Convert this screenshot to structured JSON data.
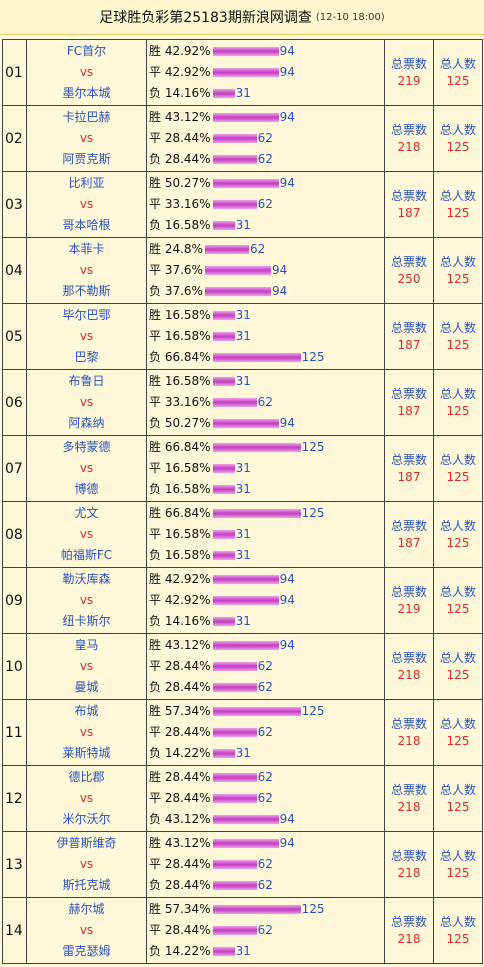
{
  "header": {
    "title": "足球胜负彩第25183期新浪网调查",
    "datetime": "(12-10 18:00)"
  },
  "labels": {
    "vs": "vs",
    "tickets": "总票数",
    "people": "总人数"
  },
  "colors": {
    "background": "#fff9d9",
    "team": "#2a52be",
    "vs": "#e02a2a",
    "bar": "#c23cc4"
  },
  "matches": [
    {
      "no": "01",
      "home": "FC首尔",
      "away": "墨尔本城",
      "tickets": "219",
      "people": "125",
      "bars": [
        {
          "label": "胜 42.92%",
          "count": 94
        },
        {
          "label": "平 42.92%",
          "count": 94
        },
        {
          "label": "负 14.16%",
          "count": 31
        }
      ]
    },
    {
      "no": "02",
      "home": "卡拉巴赫",
      "away": "阿贾克斯",
      "tickets": "218",
      "people": "125",
      "bars": [
        {
          "label": "胜 43.12%",
          "count": 94
        },
        {
          "label": "平 28.44%",
          "count": 62
        },
        {
          "label": "负 28.44%",
          "count": 62
        }
      ]
    },
    {
      "no": "03",
      "home": "比利亚",
      "away": "哥本哈根",
      "tickets": "187",
      "people": "125",
      "bars": [
        {
          "label": "胜 50.27%",
          "count": 94
        },
        {
          "label": "平 33.16%",
          "count": 62
        },
        {
          "label": "负 16.58%",
          "count": 31
        }
      ]
    },
    {
      "no": "04",
      "home": "本菲卡",
      "away": "那不勒斯",
      "tickets": "250",
      "people": "125",
      "bars": [
        {
          "label": "胜 24.8%",
          "count": 62
        },
        {
          "label": "平 37.6%",
          "count": 94
        },
        {
          "label": "负 37.6%",
          "count": 94
        }
      ]
    },
    {
      "no": "05",
      "home": "毕尔巴鄂",
      "away": "巴黎",
      "tickets": "187",
      "people": "125",
      "bars": [
        {
          "label": "胜 16.58%",
          "count": 31
        },
        {
          "label": "平 16.58%",
          "count": 31
        },
        {
          "label": "负 66.84%",
          "count": 125
        }
      ]
    },
    {
      "no": "06",
      "home": "布鲁日",
      "away": "阿森纳",
      "tickets": "187",
      "people": "125",
      "bars": [
        {
          "label": "胜 16.58%",
          "count": 31
        },
        {
          "label": "平 33.16%",
          "count": 62
        },
        {
          "label": "负 50.27%",
          "count": 94
        }
      ]
    },
    {
      "no": "07",
      "home": "多特蒙德",
      "away": "博德",
      "tickets": "187",
      "people": "125",
      "bars": [
        {
          "label": "胜 66.84%",
          "count": 125
        },
        {
          "label": "平 16.58%",
          "count": 31
        },
        {
          "label": "负 16.58%",
          "count": 31
        }
      ]
    },
    {
      "no": "08",
      "home": "尤文",
      "away": "帕福斯FC",
      "tickets": "187",
      "people": "125",
      "bars": [
        {
          "label": "胜 66.84%",
          "count": 125
        },
        {
          "label": "平 16.58%",
          "count": 31
        },
        {
          "label": "负 16.58%",
          "count": 31
        }
      ]
    },
    {
      "no": "09",
      "home": "勒沃库森",
      "away": "纽卡斯尔",
      "tickets": "219",
      "people": "125",
      "bars": [
        {
          "label": "胜 42.92%",
          "count": 94
        },
        {
          "label": "平 42.92%",
          "count": 94
        },
        {
          "label": "负 14.16%",
          "count": 31
        }
      ]
    },
    {
      "no": "10",
      "home": "皇马",
      "away": "曼城",
      "tickets": "218",
      "people": "125",
      "bars": [
        {
          "label": "胜 43.12%",
          "count": 94
        },
        {
          "label": "平 28.44%",
          "count": 62
        },
        {
          "label": "负 28.44%",
          "count": 62
        }
      ]
    },
    {
      "no": "11",
      "home": "布城",
      "away": "莱斯特城",
      "tickets": "218",
      "people": "125",
      "bars": [
        {
          "label": "胜 57.34%",
          "count": 125
        },
        {
          "label": "平 28.44%",
          "count": 62
        },
        {
          "label": "负 14.22%",
          "count": 31
        }
      ]
    },
    {
      "no": "12",
      "home": "德比郡",
      "away": "米尔沃尔",
      "tickets": "218",
      "people": "125",
      "bars": [
        {
          "label": "胜 28.44%",
          "count": 62
        },
        {
          "label": "平 28.44%",
          "count": 62
        },
        {
          "label": "负 43.12%",
          "count": 94
        }
      ]
    },
    {
      "no": "13",
      "home": "伊普斯维奇",
      "away": "斯托克城",
      "tickets": "218",
      "people": "125",
      "bars": [
        {
          "label": "胜 43.12%",
          "count": 94
        },
        {
          "label": "平 28.44%",
          "count": 62
        },
        {
          "label": "负 28.44%",
          "count": 62
        }
      ]
    },
    {
      "no": "14",
      "home": "赫尔城",
      "away": "雷克瑟姆",
      "tickets": "218",
      "people": "125",
      "bars": [
        {
          "label": "胜 57.34%",
          "count": 125
        },
        {
          "label": "平 28.44%",
          "count": 62
        },
        {
          "label": "负 14.22%",
          "count": 31
        }
      ]
    }
  ]
}
